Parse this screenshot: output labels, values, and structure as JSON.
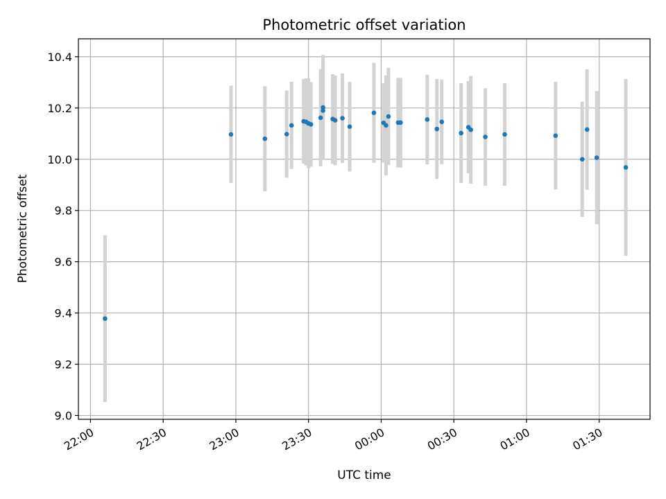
{
  "chart_data": {
    "type": "scatter",
    "title": "Photometric offset variation",
    "xlabel": "UTC time",
    "ylabel": "Photometric offset",
    "x_unit": "UTC clock time (HH:MM)",
    "xlim": [
      "21:55",
      "01:51"
    ],
    "ylim": [
      8.985,
      10.47
    ],
    "xticks": [
      "22:00",
      "22:30",
      "23:00",
      "23:30",
      "00:00",
      "00:30",
      "01:00",
      "01:30"
    ],
    "yticks": [
      "9.0",
      "9.2",
      "9.4",
      "9.6",
      "9.8",
      "10.0",
      "10.2",
      "10.4"
    ],
    "grid": true,
    "colors": {
      "points": "#1f77b4",
      "error_bars": "#d3d3d3",
      "grid": "#b0b0b0"
    },
    "points": [
      {
        "x": "22:06",
        "y": 9.378,
        "yerr": 0.325
      },
      {
        "x": "22:58",
        "y": 10.097,
        "yerr": 0.19
      },
      {
        "x": "23:12",
        "y": 10.08,
        "yerr": 0.205
      },
      {
        "x": "23:21",
        "y": 10.098,
        "yerr": 0.17
      },
      {
        "x": "23:23",
        "y": 10.132,
        "yerr": 0.17
      },
      {
        "x": "23:28",
        "y": 10.148,
        "yerr": 0.165
      },
      {
        "x": "23:29",
        "y": 10.146,
        "yerr": 0.17
      },
      {
        "x": "23:30",
        "y": 10.14,
        "yerr": 0.175
      },
      {
        "x": "23:31",
        "y": 10.136,
        "yerr": 0.165
      },
      {
        "x": "23:35",
        "y": 10.162,
        "yerr": 0.19
      },
      {
        "x": "23:36",
        "y": 10.202,
        "yerr": 0.205
      },
      {
        "x": "23:36",
        "y": 10.19,
        "yerr": 0.18
      },
      {
        "x": "23:40",
        "y": 10.157,
        "yerr": 0.175
      },
      {
        "x": "23:41",
        "y": 10.152,
        "yerr": 0.175
      },
      {
        "x": "23:44",
        "y": 10.16,
        "yerr": 0.175
      },
      {
        "x": "23:47",
        "y": 10.127,
        "yerr": 0.175
      },
      {
        "x": "23:57",
        "y": 10.181,
        "yerr": 0.195
      },
      {
        "x": "00:01",
        "y": 10.142,
        "yerr": 0.155
      },
      {
        "x": "00:02",
        "y": 10.132,
        "yerr": 0.195
      },
      {
        "x": "00:03",
        "y": 10.167,
        "yerr": 0.19
      },
      {
        "x": "00:07",
        "y": 10.143,
        "yerr": 0.175
      },
      {
        "x": "00:08",
        "y": 10.143,
        "yerr": 0.175
      },
      {
        "x": "00:19",
        "y": 10.155,
        "yerr": 0.175
      },
      {
        "x": "00:23",
        "y": 10.118,
        "yerr": 0.195
      },
      {
        "x": "00:25",
        "y": 10.146,
        "yerr": 0.165
      },
      {
        "x": "00:33",
        "y": 10.102,
        "yerr": 0.195
      },
      {
        "x": "00:36",
        "y": 10.125,
        "yerr": 0.18
      },
      {
        "x": "00:37",
        "y": 10.115,
        "yerr": 0.21
      },
      {
        "x": "00:43",
        "y": 10.087,
        "yerr": 0.19
      },
      {
        "x": "00:51",
        "y": 10.097,
        "yerr": 0.2
      },
      {
        "x": "01:12",
        "y": 10.092,
        "yerr": 0.21
      },
      {
        "x": "01:23",
        "y": 10.0,
        "yerr": 0.225
      },
      {
        "x": "01:25",
        "y": 10.116,
        "yerr": 0.235
      },
      {
        "x": "01:29",
        "y": 10.006,
        "yerr": 0.26
      },
      {
        "x": "01:41",
        "y": 9.968,
        "yerr": 0.345
      }
    ]
  }
}
